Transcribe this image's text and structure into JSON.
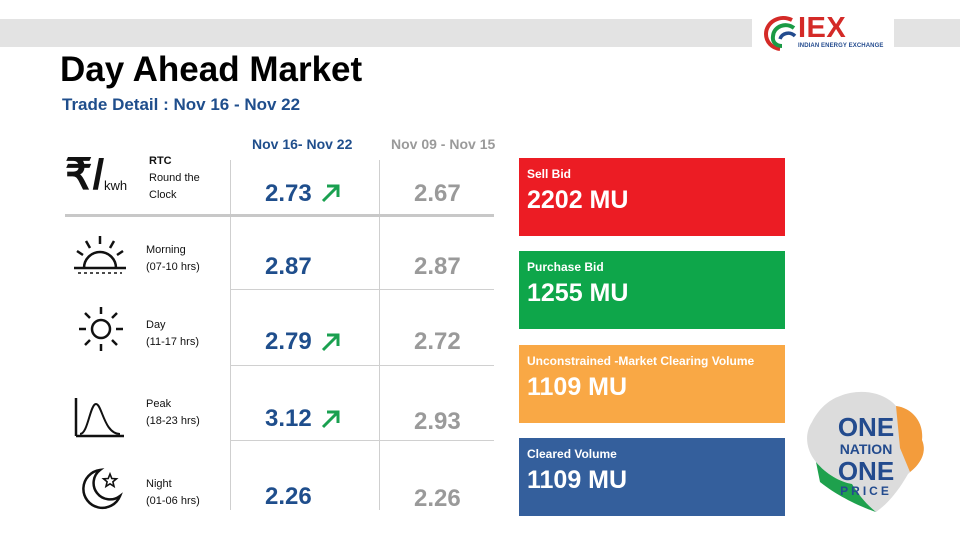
{
  "header": {
    "title": "Day Ahead Market",
    "subtitle": "Trade Detail : Nov 16 - Nov 22"
  },
  "logo": {
    "brand": "IEX",
    "tagline": "INDIAN ENERGY EXCHANGE"
  },
  "unit": {
    "currency": "₹/",
    "per": "kwh"
  },
  "columns": {
    "current": "Nov 16- Nov 22",
    "previous": "Nov 09 - Nov 15"
  },
  "rows": [
    {
      "code": "RTC",
      "label1": "Round the",
      "label2": "Clock",
      "current": "2.73",
      "previous": "2.67",
      "trend": "up",
      "icon": "rupee-per-kwh-icon"
    },
    {
      "label1": "Morning",
      "label2": "(07-10 hrs)",
      "current": "2.87",
      "previous": "2.87",
      "trend": "none",
      "icon": "sunrise-icon"
    },
    {
      "label1": "Day",
      "label2": "(11-17 hrs)",
      "current": "2.79",
      "previous": "2.72",
      "trend": "up",
      "icon": "sun-icon"
    },
    {
      "label1": "Peak",
      "label2": "(18-23 hrs)",
      "current": "3.12",
      "previous": "2.93",
      "trend": "up",
      "icon": "peak-curve-icon"
    },
    {
      "label1": "Night",
      "label2": "(01-06 hrs)",
      "current": "2.26",
      "previous": "2.26",
      "trend": "none",
      "icon": "moon-star-icon"
    }
  ],
  "cards": [
    {
      "label": "Sell Bid",
      "value": "2202 MU",
      "color": "#ec1c24"
    },
    {
      "label": "Purchase Bid",
      "value": "1255 MU",
      "color": "#0ea64a"
    },
    {
      "label": "Unconstrained -Market Clearing Volume",
      "value": "1109 MU",
      "color": "#f9a845"
    },
    {
      "label": "Cleared Volume",
      "value": "1109 MU",
      "color": "#345f9c"
    }
  ],
  "badge": {
    "line1": "ONE",
    "line2": "NATION",
    "line3": "ONE",
    "line4": "PRICE"
  },
  "colors": {
    "accent_blue": "#1f4e8c",
    "muted_gray": "#9a9a9a",
    "up_arrow": "#1aa050"
  }
}
